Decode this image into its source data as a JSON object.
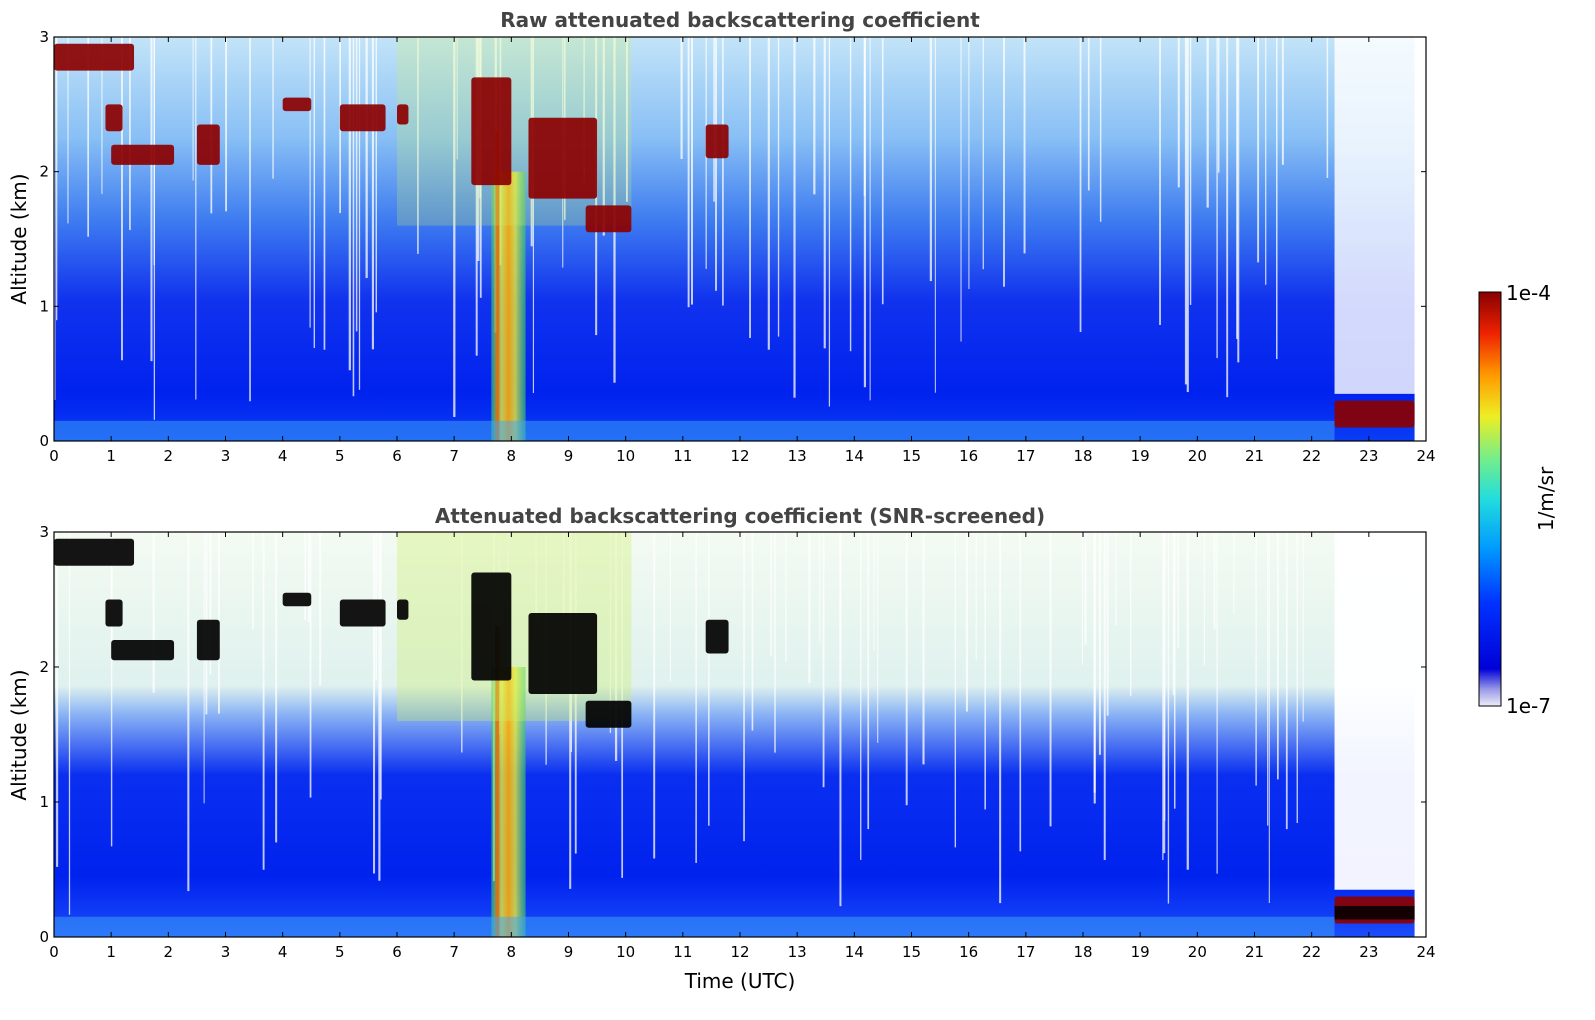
{
  "chart_data": [
    {
      "type": "heatmap",
      "title": "Raw attenuated backscattering coefficient",
      "xlabel": "",
      "ylabel": "Altitude (km)",
      "xlim": [
        0,
        24
      ],
      "ylim": [
        0,
        3
      ],
      "x_ticks": [
        "0",
        "1",
        "2",
        "3",
        "4",
        "5",
        "6",
        "7",
        "8",
        "9",
        "10",
        "11",
        "12",
        "13",
        "14",
        "15",
        "16",
        "17",
        "18",
        "19",
        "20",
        "21",
        "22",
        "23",
        "24"
      ],
      "y_ticks": [
        "0",
        "1",
        "2",
        "3"
      ],
      "features": [
        {
          "feature": "cloud",
          "time_utc": [
            0.0,
            1.4
          ],
          "altitude_km": [
            2.75,
            2.95
          ]
        },
        {
          "feature": "cloud",
          "time_utc": [
            0.9,
            1.2
          ],
          "altitude_km": [
            2.3,
            2.5
          ]
        },
        {
          "feature": "cloud",
          "time_utc": [
            1.0,
            2.1
          ],
          "altitude_km": [
            2.05,
            2.2
          ]
        },
        {
          "feature": "cloud",
          "time_utc": [
            2.5,
            2.9
          ],
          "altitude_km": [
            2.05,
            2.35
          ]
        },
        {
          "feature": "cloud",
          "time_utc": [
            4.0,
            4.5
          ],
          "altitude_km": [
            2.45,
            2.55
          ]
        },
        {
          "feature": "cloud",
          "time_utc": [
            5.0,
            5.8
          ],
          "altitude_km": [
            2.3,
            2.5
          ]
        },
        {
          "feature": "cloud",
          "time_utc": [
            6.0,
            6.2
          ],
          "altitude_km": [
            2.35,
            2.5
          ]
        },
        {
          "feature": "cloud",
          "time_utc": [
            7.3,
            8.0
          ],
          "altitude_km": [
            1.9,
            2.7
          ]
        },
        {
          "feature": "cloud",
          "time_utc": [
            8.3,
            9.5
          ],
          "altitude_km": [
            1.8,
            2.4
          ]
        },
        {
          "feature": "cloud",
          "time_utc": [
            9.3,
            10.1
          ],
          "altitude_km": [
            1.55,
            1.75
          ]
        },
        {
          "feature": "cloud",
          "time_utc": [
            11.4,
            11.8
          ],
          "altitude_km": [
            2.1,
            2.35
          ]
        },
        {
          "feature": "boundary_layer_top",
          "time_utc": [
            22.4,
            23.8
          ],
          "altitude_km": [
            0.1,
            0.3
          ]
        }
      ]
    },
    {
      "type": "heatmap",
      "title": "Attenuated backscattering coefficient (SNR-screened)",
      "xlabel": "Time (UTC)",
      "ylabel": "Altitude (km)",
      "xlim": [
        0,
        24
      ],
      "ylim": [
        0,
        3
      ],
      "x_ticks": [
        "0",
        "1",
        "2",
        "3",
        "4",
        "5",
        "6",
        "7",
        "8",
        "9",
        "10",
        "11",
        "12",
        "13",
        "14",
        "15",
        "16",
        "17",
        "18",
        "19",
        "20",
        "21",
        "22",
        "23",
        "24"
      ],
      "y_ticks": [
        "0",
        "1",
        "2",
        "3"
      ]
    }
  ],
  "colorbar": {
    "max_label": "1e-4",
    "min_label": "1e-7",
    "label": "1/m/sr",
    "colors": [
      "#e8e8f8",
      "#0000c8",
      "#0033ff",
      "#0099ff",
      "#33dddd",
      "#88ee77",
      "#eeee22",
      "#ff9900",
      "#ee2200",
      "#880000"
    ]
  },
  "colors": {
    "text": "#000000",
    "title": "#444444",
    "cloud_raw": "#8b0000",
    "cloud_screened": "#000000"
  }
}
